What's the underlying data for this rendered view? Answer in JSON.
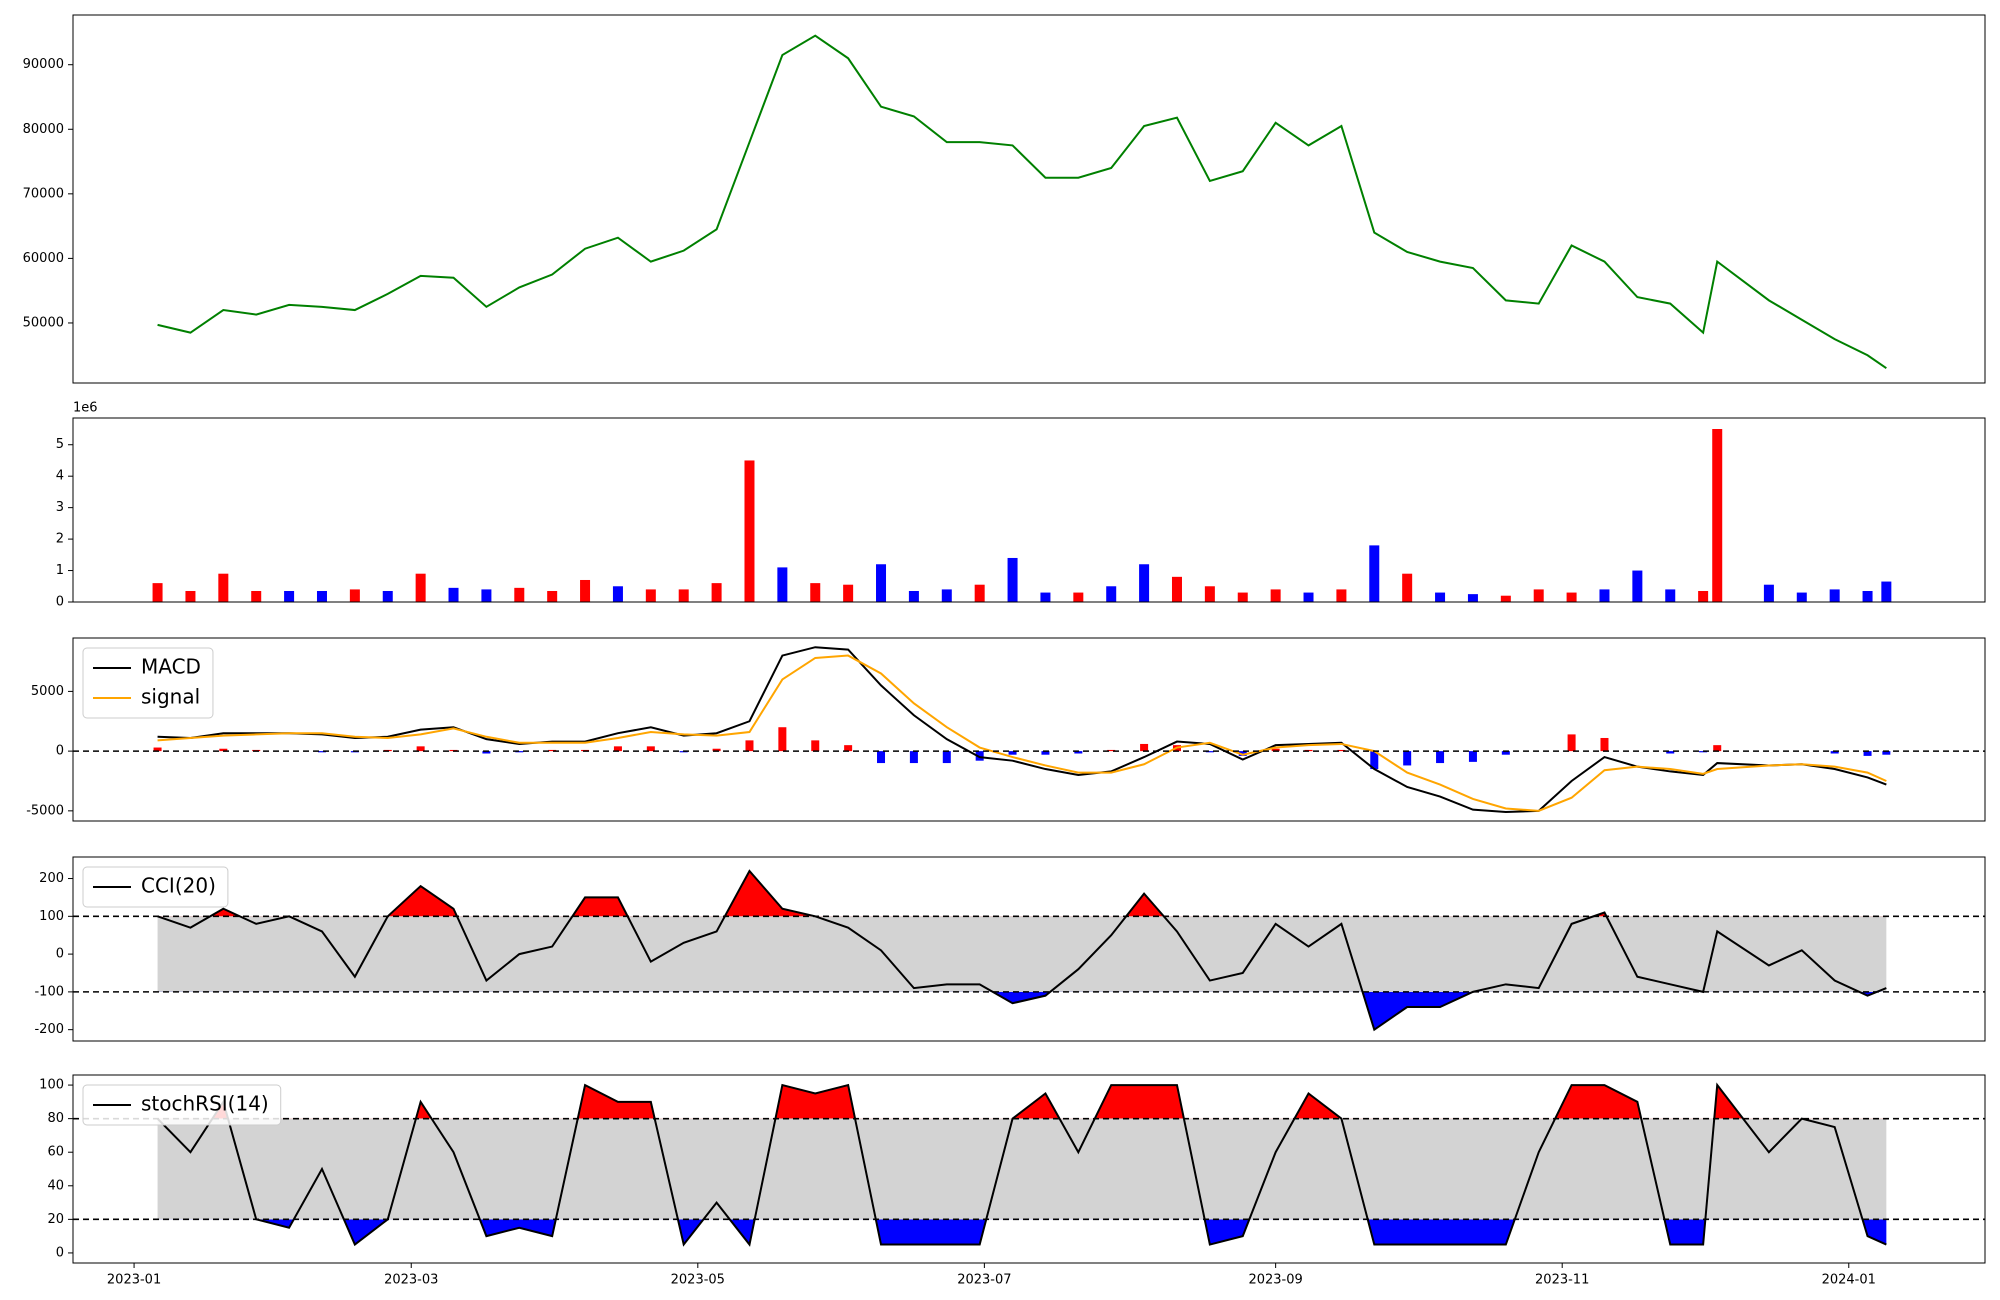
{
  "chart_data": [
    {
      "type": "line",
      "x": [
        "2023-01-06",
        "2023-01-13",
        "2023-01-20",
        "2023-01-27",
        "2023-02-03",
        "2023-02-10",
        "2023-02-17",
        "2023-02-24",
        "2023-03-03",
        "2023-03-10",
        "2023-03-17",
        "2023-03-24",
        "2023-03-31",
        "2023-04-07",
        "2023-04-14",
        "2023-04-21",
        "2023-04-28",
        "2023-05-05",
        "2023-05-12",
        "2023-05-19",
        "2023-05-26",
        "2023-06-02",
        "2023-06-09",
        "2023-06-16",
        "2023-06-23",
        "2023-06-30",
        "2023-07-07",
        "2023-07-14",
        "2023-07-21",
        "2023-07-28",
        "2023-08-04",
        "2023-08-11",
        "2023-08-18",
        "2023-08-25",
        "2023-09-01",
        "2023-09-08",
        "2023-09-15",
        "2023-09-22",
        "2023-09-29",
        "2023-10-06",
        "2023-10-13",
        "2023-10-20",
        "2023-10-27",
        "2023-11-03",
        "2023-11-10",
        "2023-11-17",
        "2023-11-24",
        "2023-12-01",
        "2023-12-04",
        "2023-12-15",
        "2023-12-22",
        "2023-12-29",
        "2024-01-05",
        "2024-01-09"
      ],
      "values": [
        49700,
        48500,
        52000,
        51300,
        52800,
        52500,
        52000,
        54500,
        57300,
        57000,
        52500,
        55500,
        57500,
        61500,
        63200,
        59500,
        61200,
        64500,
        78000,
        91500,
        94500,
        91000,
        83500,
        82000,
        78000,
        78000,
        77500,
        72500,
        72500,
        74000,
        80500,
        81800,
        72000,
        73500,
        81000,
        77500,
        80500,
        64000,
        61000,
        59500,
        58500,
        53500,
        53000,
        62000,
        59500,
        54000,
        53000,
        48500,
        59500,
        53500,
        50500,
        47500,
        45000,
        43000
      ],
      "color": "green",
      "xlim": [
        "2022-12-19",
        "2024-01-30"
      ],
      "ylim": [
        40700,
        97700
      ],
      "yticks": [
        50000,
        60000,
        70000,
        80000,
        90000
      ]
    },
    {
      "type": "bar",
      "x": [
        "2023-01-06",
        "2023-01-13",
        "2023-01-20",
        "2023-01-27",
        "2023-02-03",
        "2023-02-10",
        "2023-02-17",
        "2023-02-24",
        "2023-03-03",
        "2023-03-10",
        "2023-03-17",
        "2023-03-24",
        "2023-03-31",
        "2023-04-07",
        "2023-04-14",
        "2023-04-21",
        "2023-04-28",
        "2023-05-05",
        "2023-05-12",
        "2023-05-19",
        "2023-05-26",
        "2023-06-02",
        "2023-06-09",
        "2023-06-16",
        "2023-06-23",
        "2023-06-30",
        "2023-07-07",
        "2023-07-14",
        "2023-07-21",
        "2023-07-28",
        "2023-08-04",
        "2023-08-11",
        "2023-08-18",
        "2023-08-25",
        "2023-09-01",
        "2023-09-08",
        "2023-09-15",
        "2023-09-22",
        "2023-09-29",
        "2023-10-06",
        "2023-10-13",
        "2023-10-20",
        "2023-10-27",
        "2023-11-03",
        "2023-11-10",
        "2023-11-17",
        "2023-11-24",
        "2023-12-01",
        "2023-12-04",
        "2023-12-15",
        "2023-12-22",
        "2023-12-29",
        "2024-01-05",
        "2024-01-09"
      ],
      "values": [
        0.6,
        0.35,
        0.9,
        0.35,
        0.35,
        0.35,
        0.4,
        0.35,
        0.9,
        0.45,
        0.4,
        0.45,
        0.35,
        0.7,
        0.5,
        0.4,
        0.4,
        0.6,
        4.5,
        1.1,
        0.6,
        0.55,
        1.2,
        0.35,
        0.4,
        0.55,
        1.4,
        0.3,
        0.3,
        0.5,
        1.2,
        0.8,
        0.5,
        0.3,
        0.4,
        0.3,
        0.4,
        1.8,
        0.9,
        0.3,
        0.25,
        0.2,
        0.4,
        0.3,
        0.4,
        1.0,
        0.4,
        0.35,
        5.5,
        0.55,
        0.3,
        0.4,
        0.35,
        0.65
      ],
      "colors": [
        "red",
        "red",
        "red",
        "red",
        "blue",
        "blue",
        "red",
        "blue",
        "red",
        "blue",
        "blue",
        "red",
        "red",
        "red",
        "blue",
        "red",
        "red",
        "red",
        "red",
        "blue",
        "red",
        "red",
        "blue",
        "blue",
        "blue",
        "red",
        "blue",
        "blue",
        "red",
        "blue",
        "blue",
        "red",
        "red",
        "red",
        "red",
        "blue",
        "red",
        "blue",
        "red",
        "blue",
        "blue",
        "red",
        "red",
        "red",
        "blue",
        "blue",
        "blue",
        "red",
        "red",
        "blue",
        "blue",
        "blue",
        "blue",
        "blue"
      ],
      "scale_label": "1e6",
      "xlim": [
        "2022-12-19",
        "2024-01-30"
      ],
      "ylim": [
        0,
        5.85
      ],
      "yticks": [
        0,
        1,
        2,
        3,
        4,
        5
      ]
    },
    {
      "type": "line",
      "x": [
        "2023-01-06",
        "2023-01-13",
        "2023-01-20",
        "2023-01-27",
        "2023-02-03",
        "2023-02-10",
        "2023-02-17",
        "2023-02-24",
        "2023-03-03",
        "2023-03-10",
        "2023-03-17",
        "2023-03-24",
        "2023-03-31",
        "2023-04-07",
        "2023-04-14",
        "2023-04-21",
        "2023-04-28",
        "2023-05-05",
        "2023-05-12",
        "2023-05-19",
        "2023-05-26",
        "2023-06-02",
        "2023-06-09",
        "2023-06-16",
        "2023-06-23",
        "2023-06-30",
        "2023-07-07",
        "2023-07-14",
        "2023-07-21",
        "2023-07-28",
        "2023-08-04",
        "2023-08-11",
        "2023-08-18",
        "2023-08-25",
        "2023-09-01",
        "2023-09-08",
        "2023-09-15",
        "2023-09-22",
        "2023-09-29",
        "2023-10-06",
        "2023-10-13",
        "2023-10-20",
        "2023-10-27",
        "2023-11-03",
        "2023-11-10",
        "2023-11-17",
        "2023-11-24",
        "2023-12-01",
        "2023-12-04",
        "2023-12-15",
        "2023-12-22",
        "2023-12-29",
        "2024-01-05",
        "2024-01-09"
      ],
      "series": [
        {
          "name": "MACD",
          "color": "black",
          "values": [
            1200,
            1100,
            1500,
            1500,
            1500,
            1400,
            1100,
            1200,
            1800,
            2000,
            1000,
            600,
            800,
            800,
            1500,
            2000,
            1300,
            1500,
            2500,
            8000,
            8700,
            8500,
            5500,
            3000,
            1000,
            -500,
            -800,
            -1500,
            -2000,
            -1700,
            -500,
            800,
            600,
            -700,
            500,
            600,
            700,
            -1500,
            -3000,
            -3800,
            -4900,
            -5100,
            -5000,
            -2500,
            -500,
            -1300,
            -1700,
            -2000,
            -1000,
            -1200,
            -1100,
            -1500,
            -2200,
            -2800
          ]
        },
        {
          "name": "signal",
          "color": "orange",
          "values": [
            900,
            1100,
            1300,
            1400,
            1500,
            1500,
            1200,
            1100,
            1400,
            1900,
            1200,
            700,
            700,
            700,
            1100,
            1600,
            1400,
            1300,
            1600,
            6000,
            7800,
            8000,
            6500,
            4000,
            2000,
            300,
            -500,
            -1200,
            -1800,
            -1800,
            -1100,
            300,
            700,
            -300,
            300,
            500,
            600,
            0,
            -1800,
            -2800,
            -4000,
            -4800,
            -5000,
            -3900,
            -1600,
            -1300,
            -1500,
            -1900,
            -1500,
            -1200,
            -1100,
            -1300,
            -1800,
            -2500
          ]
        }
      ],
      "histogram": {
        "values": [
          300,
          0,
          200,
          100,
          0,
          -100,
          -100,
          100,
          400,
          100,
          -200,
          -100,
          100,
          100,
          400,
          400,
          -100,
          200,
          900,
          2000,
          900,
          500,
          -1000,
          -1000,
          -1000,
          -800,
          -300,
          -300,
          -200,
          100,
          600,
          500,
          -100,
          -400,
          200,
          100,
          100,
          -1500,
          -1200,
          -1000,
          -900,
          -300,
          0,
          1400,
          1100,
          0,
          -200,
          -100,
          500,
          0,
          0,
          -200,
          -400,
          -300
        ],
        "positive_color": "red",
        "negative_color": "blue"
      },
      "hlines": [
        0
      ],
      "legend": "upper left",
      "xlim": [
        "2022-12-19",
        "2024-01-30"
      ],
      "ylim": [
        -5850,
        9470
      ],
      "yticks": [
        -5000,
        0,
        5000
      ]
    },
    {
      "type": "line",
      "x": [
        "2023-01-06",
        "2023-01-13",
        "2023-01-20",
        "2023-01-27",
        "2023-02-03",
        "2023-02-10",
        "2023-02-17",
        "2023-02-24",
        "2023-03-03",
        "2023-03-10",
        "2023-03-17",
        "2023-03-24",
        "2023-03-31",
        "2023-04-07",
        "2023-04-14",
        "2023-04-21",
        "2023-04-28",
        "2023-05-05",
        "2023-05-12",
        "2023-05-19",
        "2023-05-26",
        "2023-06-02",
        "2023-06-09",
        "2023-06-16",
        "2023-06-23",
        "2023-06-30",
        "2023-07-07",
        "2023-07-14",
        "2023-07-21",
        "2023-07-28",
        "2023-08-04",
        "2023-08-11",
        "2023-08-18",
        "2023-08-25",
        "2023-09-01",
        "2023-09-08",
        "2023-09-15",
        "2023-09-22",
        "2023-09-29",
        "2023-10-06",
        "2023-10-13",
        "2023-10-20",
        "2023-10-27",
        "2023-11-03",
        "2023-11-10",
        "2023-11-17",
        "2023-11-24",
        "2023-12-01",
        "2023-12-04",
        "2023-12-15",
        "2023-12-22",
        "2023-12-29",
        "2024-01-05",
        "2024-01-09"
      ],
      "series": [
        {
          "name": "CCI(20)",
          "color": "black",
          "values": [
            100,
            70,
            120,
            80,
            100,
            60,
            -60,
            100,
            180,
            120,
            -70,
            0,
            20,
            150,
            150,
            -20,
            30,
            60,
            220,
            120,
            100,
            70,
            10,
            -90,
            -80,
            -80,
            -130,
            -110,
            -40,
            50,
            160,
            60,
            -70,
            -50,
            80,
            20,
            80,
            -200,
            -140,
            -140,
            -100,
            -80,
            -90,
            80,
            110,
            -60,
            -80,
            -100,
            60,
            -30,
            10,
            -70,
            -110,
            -90
          ]
        }
      ],
      "thresholds": [
        100,
        -100
      ],
      "fill_colors": {
        "above": "red",
        "between": "lightgray",
        "below": "blue"
      },
      "legend": "upper left",
      "xlim": [
        "2022-12-19",
        "2024-01-30"
      ],
      "ylim": [
        -230,
        257
      ],
      "yticks": [
        -200,
        -100,
        0,
        100,
        200
      ]
    },
    {
      "type": "line",
      "x": [
        "2023-01-06",
        "2023-01-13",
        "2023-01-20",
        "2023-01-27",
        "2023-02-03",
        "2023-02-10",
        "2023-02-17",
        "2023-02-24",
        "2023-03-03",
        "2023-03-10",
        "2023-03-17",
        "2023-03-24",
        "2023-03-31",
        "2023-04-07",
        "2023-04-14",
        "2023-04-21",
        "2023-04-28",
        "2023-05-05",
        "2023-05-12",
        "2023-05-19",
        "2023-05-26",
        "2023-06-02",
        "2023-06-09",
        "2023-06-16",
        "2023-06-23",
        "2023-06-30",
        "2023-07-07",
        "2023-07-14",
        "2023-07-21",
        "2023-07-28",
        "2023-08-04",
        "2023-08-11",
        "2023-08-18",
        "2023-08-25",
        "2023-09-01",
        "2023-09-08",
        "2023-09-15",
        "2023-09-22",
        "2023-09-29",
        "2023-10-06",
        "2023-10-13",
        "2023-10-20",
        "2023-10-27",
        "2023-11-03",
        "2023-11-10",
        "2023-11-17",
        "2023-11-24",
        "2023-12-01",
        "2023-12-04",
        "2023-12-15",
        "2023-12-22",
        "2023-12-29",
        "2024-01-05",
        "2024-01-09"
      ],
      "series": [
        {
          "name": "stochRSI(14)",
          "color": "black",
          "values": [
            80,
            60,
            90,
            20,
            15,
            50,
            5,
            20,
            90,
            60,
            10,
            15,
            10,
            100,
            90,
            90,
            5,
            30,
            5,
            100,
            95,
            100,
            5,
            5,
            5,
            5,
            80,
            95,
            60,
            100,
            100,
            100,
            5,
            10,
            60,
            95,
            80,
            5,
            5,
            5,
            5,
            5,
            60,
            100,
            100,
            90,
            5,
            5,
            100,
            60,
            80,
            75,
            10,
            5
          ]
        }
      ],
      "thresholds": [
        80,
        20
      ],
      "fill_colors": {
        "above": "red",
        "between": "lightgray",
        "below": "blue"
      },
      "legend": "upper left",
      "xlim": [
        "2022-12-19",
        "2024-01-30"
      ],
      "xticks": [
        "2023-01",
        "2023-03",
        "2023-05",
        "2023-07",
        "2023-09",
        "2023-11",
        "2024-01"
      ],
      "ylim": [
        -6,
        106
      ],
      "yticks": [
        0,
        20,
        40,
        60,
        80,
        100
      ]
    }
  ]
}
